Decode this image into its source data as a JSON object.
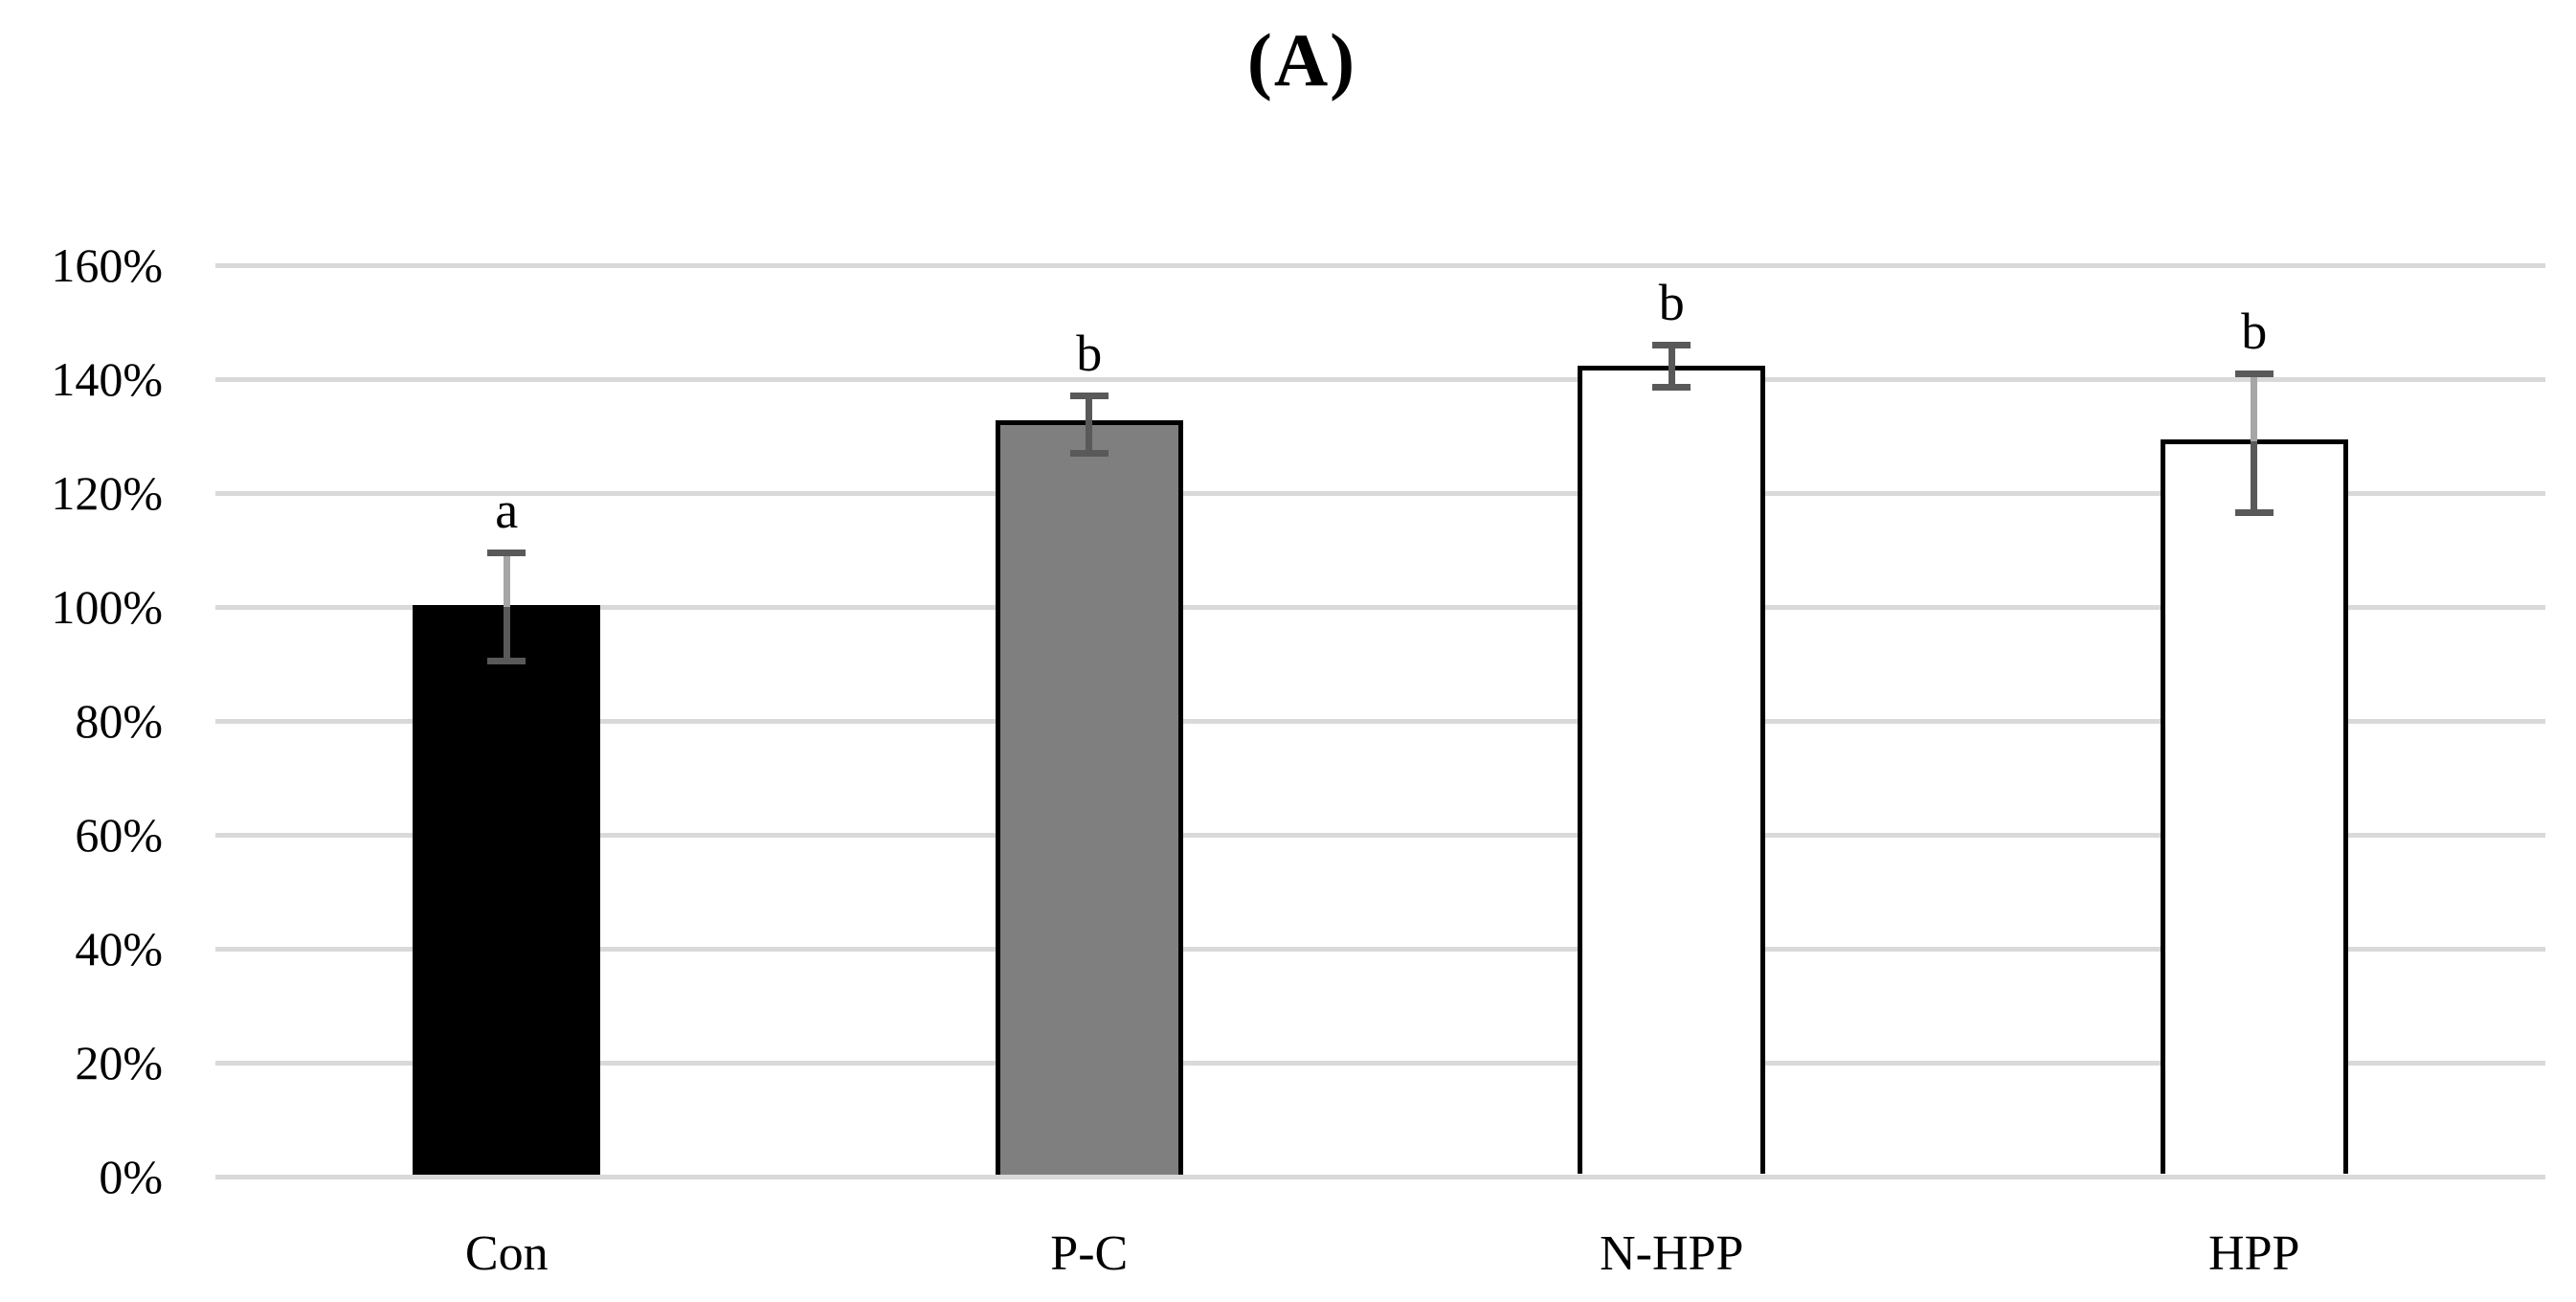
{
  "chart_data": {
    "type": "bar",
    "panel_label": "(A)",
    "title": "(A)",
    "xlabel": "",
    "ylabel": "",
    "categories": [
      "Con",
      "P-C",
      "N-HPP",
      "HPP"
    ],
    "values": [
      100,
      132.5,
      142,
      129
    ],
    "error_up": [
      9.5,
      4.5,
      4,
      12
    ],
    "error_down": [
      9.5,
      5.5,
      3.5,
      12.5
    ],
    "significance_letters": [
      "a",
      "b",
      "b",
      "b"
    ],
    "bar_styles": [
      {
        "fill": "#000000",
        "border": "#000000",
        "error_upper_line": "#a6a6a6"
      },
      {
        "fill": "#7f7f7f",
        "border": "#000000",
        "error_upper_line": "#595959"
      },
      {
        "fill": "#ffffff",
        "border": "#000000",
        "error_upper_line": "#595959"
      },
      {
        "fill": "#ffffff",
        "border": "#000000",
        "error_upper_line": "#a6a6a6"
      }
    ],
    "yticks": [
      0,
      20,
      40,
      60,
      80,
      100,
      120,
      140,
      160
    ],
    "ytick_labels": [
      "0%",
      "20%",
      "40%",
      "60%",
      "80%",
      "100%",
      "120%",
      "140%",
      "160%"
    ],
    "ylim": [
      0,
      160
    ],
    "grid": true,
    "legend": "none",
    "colors": {
      "gridline": "#d9d9d9",
      "axis_line": "#d9d9d9",
      "error_bar": "#595959",
      "text": "#000000",
      "background": "#ffffff"
    }
  }
}
